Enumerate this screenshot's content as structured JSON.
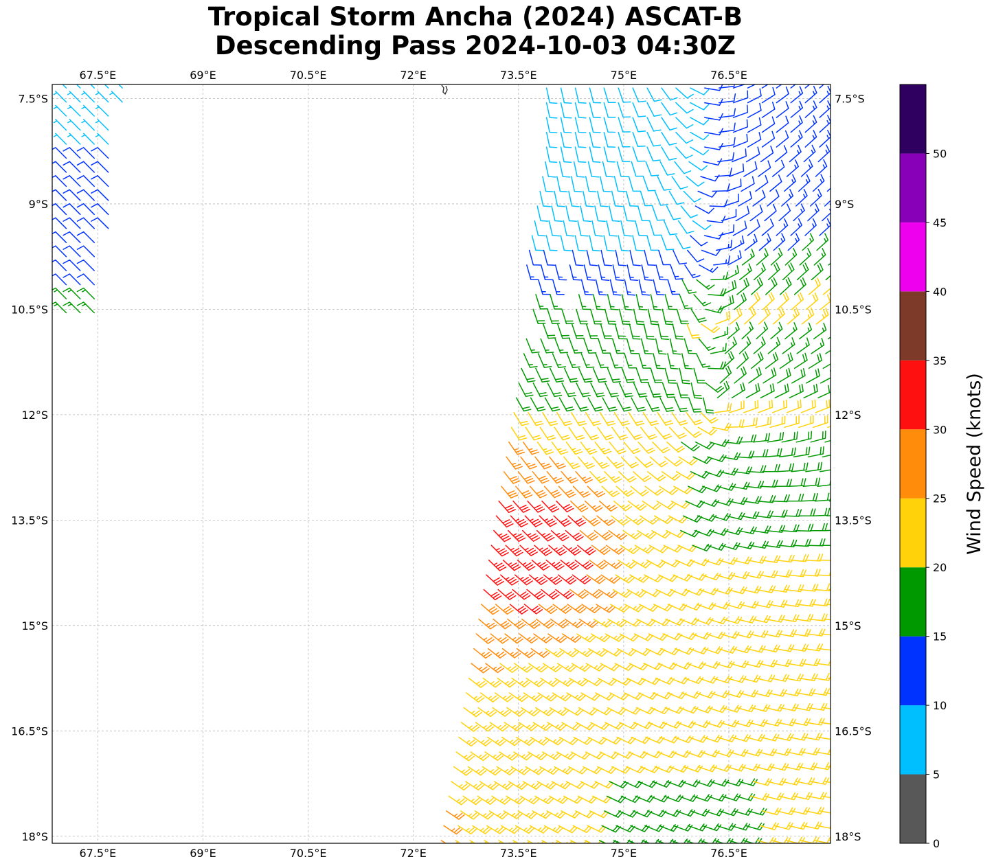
{
  "title": {
    "line1": "Tropical Storm Ancha (2024) ASCAT-B",
    "line2": "Descending Pass 2024-10-03 04:30Z"
  },
  "map": {
    "lon_range": [
      66.85,
      77.95
    ],
    "lat_range": [
      -18.1,
      -7.3
    ],
    "projection": "PlateCarree",
    "gridlines": true,
    "gridline_style": "dashed",
    "lon_ticks": [
      67.5,
      69,
      70.5,
      72,
      73.5,
      75,
      76.5
    ],
    "lon_tick_labels": [
      "67.5°E",
      "69°E",
      "70.5°E",
      "72°E",
      "73.5°E",
      "75°E",
      "76.5°E"
    ],
    "lat_ticks": [
      -7.5,
      -9,
      -10.5,
      -12,
      -13.5,
      -15,
      -16.5,
      -18
    ],
    "lat_tick_labels": [
      "7.5°S",
      "9°S",
      "10.5°S",
      "12°S",
      "13.5°S",
      "15°S",
      "16.5°S",
      "18°S"
    ],
    "coastline_color": "#333333",
    "swaths": [
      {
        "name": "west",
        "lon_range": [
          66.85,
          67.9
        ],
        "lat_range": [
          -10.55,
          -7.3
        ]
      },
      {
        "name": "east",
        "lon_range": [
          72.4,
          77.95
        ],
        "lat_range": [
          -18.1,
          -7.3
        ]
      }
    ],
    "storm_center": {
      "lon": 76.2,
      "lat": -11.9
    }
  },
  "colorbar": {
    "label": "Wind Speed (knots)",
    "bounds": [
      0,
      5,
      10,
      15,
      20,
      25,
      30,
      35,
      40,
      45,
      50,
      55
    ],
    "tick_labels": [
      "0",
      "5",
      "10",
      "15",
      "20",
      "25",
      "30",
      "35",
      "40",
      "45",
      "50"
    ],
    "colors": [
      "#585858",
      "#00bfff",
      "#0033ff",
      "#009900",
      "#ffd20a",
      "#ff8c0a",
      "#ff1010",
      "#7e3a28",
      "#ee00ee",
      "#8800b8",
      "#2f0060"
    ]
  }
}
